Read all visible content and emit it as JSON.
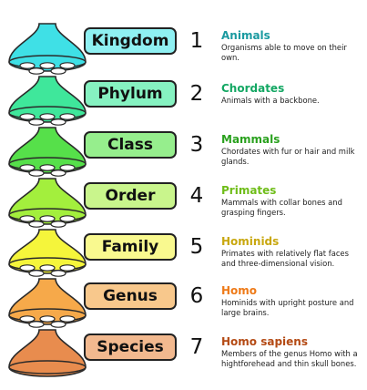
{
  "levels": [
    {
      "rank": "Kingdom",
      "number": "1",
      "title": "Animals",
      "description": "Organisms able to move on their own.",
      "fill": "#3fe0e6",
      "box_fill": "#8ff0f2",
      "title_color": "#1a9aa0"
    },
    {
      "rank": "Phylum",
      "number": "2",
      "title": "Chordates",
      "description": "Animals with a backbone.",
      "fill": "#3fe79b",
      "box_fill": "#86f2c1",
      "title_color": "#13a763"
    },
    {
      "rank": "Class",
      "number": "3",
      "title": "Mammals",
      "description": "Chordates with fur or hair and milk glands.",
      "fill": "#56e04a",
      "box_fill": "#96ee8d",
      "title_color": "#2aa11e"
    },
    {
      "rank": "Order",
      "number": "4",
      "title": "Primates",
      "description": "Mammals with collar bones and grasping fingers.",
      "fill": "#a3ef3d",
      "box_fill": "#c9f58c",
      "title_color": "#6fbd19"
    },
    {
      "rank": "Family",
      "number": "5",
      "title": "Hominids",
      "description": "Primates with relatively flat faces and three-dimensional vision.",
      "fill": "#f5f53b",
      "box_fill": "#f9f98f",
      "title_color": "#c8a70e"
    },
    {
      "rank": "Genus",
      "number": "6",
      "title": "Homo",
      "description": "Hominids with upright posture and large brains.",
      "fill": "#f6a94a",
      "box_fill": "#f8c88c",
      "title_color": "#ee7a18"
    },
    {
      "rank": "Species",
      "number": "7",
      "title": "Homo sapiens",
      "description": "Members of the genus Homo with a hightforehead and thin skull bones.",
      "fill": "#e88c4e",
      "box_fill": "#f2b98f",
      "title_color": "#b44a14"
    }
  ],
  "outline_color": "#2a2a2a"
}
